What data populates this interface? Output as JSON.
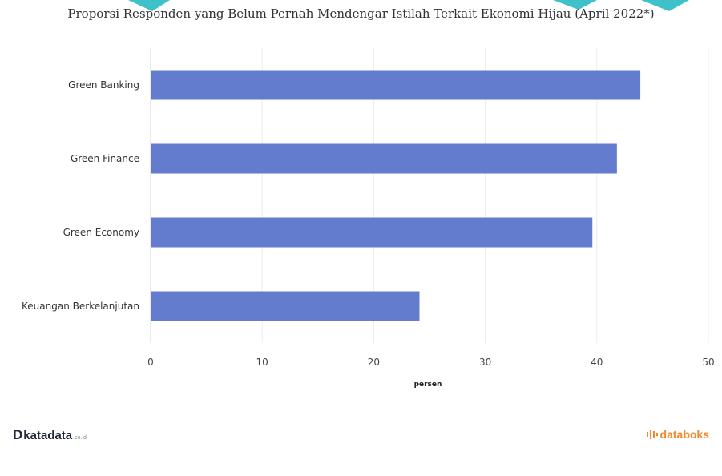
{
  "chart_data": {
    "type": "bar",
    "orientation": "horizontal",
    "title": "Proporsi Responden yang Belum Pernah Mendengar Istilah Terkait Ekonomi Hijau (April 2022*)",
    "categories": [
      "Green Banking",
      "Green Finance",
      "Green Economy",
      "Keuangan Berkelanjutan"
    ],
    "values": [
      43.9,
      41.8,
      39.6,
      24.1
    ],
    "xlabel": "persen",
    "ylabel": "",
    "xlim": [
      0,
      50
    ],
    "xticks": [
      "0",
      "10",
      "20",
      "30",
      "40",
      "50"
    ],
    "grid": true,
    "bar_color": "#637cce"
  },
  "footer": {
    "brand_left": "katadata",
    "brand_left_mark": "D",
    "brand_left_suffix": ".co.id",
    "brand_right": "databoks"
  }
}
